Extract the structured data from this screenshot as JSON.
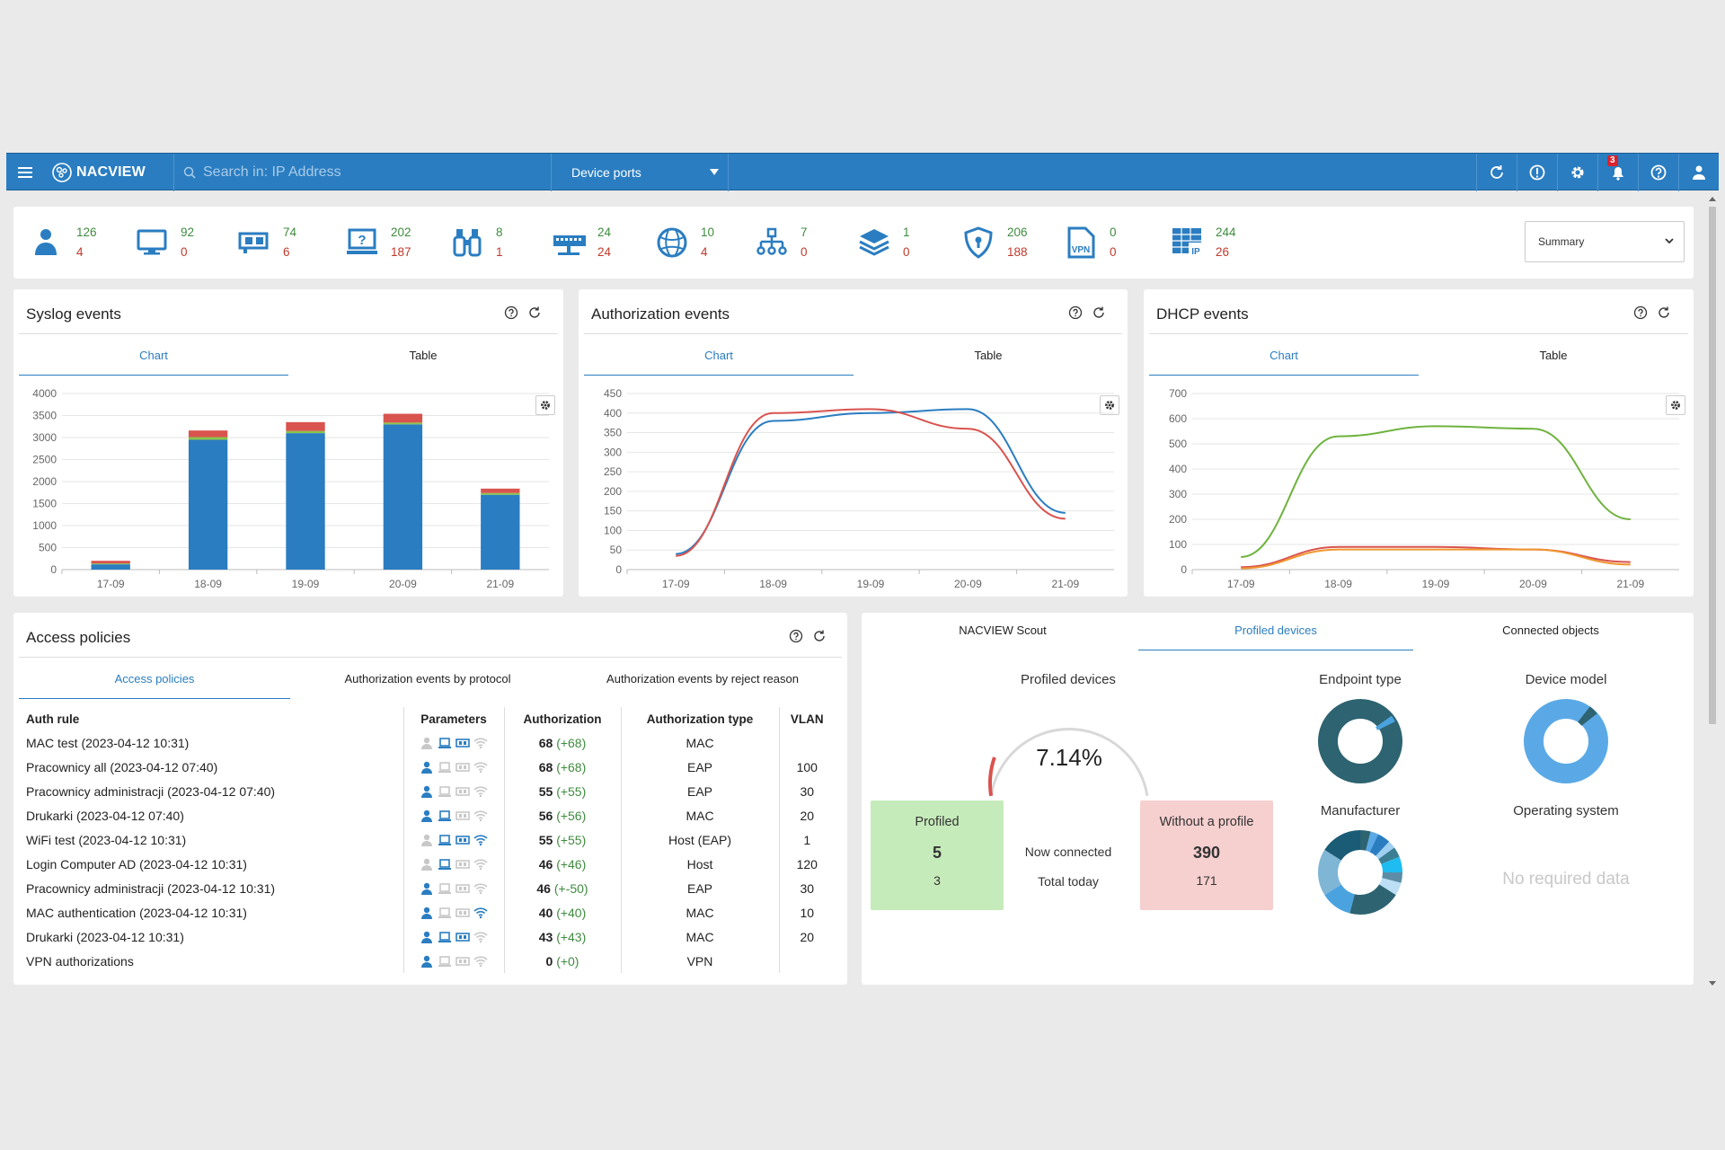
{
  "topbar": {
    "logo_text": "NACVIEW",
    "search_placeholder": "Search in: IP Address",
    "select_value": "Device ports",
    "notification_count": "3",
    "icons": [
      "refresh-icon",
      "info-icon",
      "gear-icon",
      "notification-bell-icon",
      "help-icon",
      "user-icon"
    ]
  },
  "stats": [
    {
      "icon": "users-icon",
      "top": "126",
      "bottom": "4"
    },
    {
      "icon": "monitor-icon",
      "top": "92",
      "bottom": "0"
    },
    {
      "icon": "network-card-icon",
      "top": "74",
      "bottom": "6"
    },
    {
      "icon": "unknown-device-icon",
      "top": "202",
      "bottom": "187"
    },
    {
      "icon": "binoculars-icon",
      "top": "8",
      "bottom": "1"
    },
    {
      "icon": "switch-icon",
      "top": "24",
      "bottom": "24"
    },
    {
      "icon": "globe-network-icon",
      "top": "10",
      "bottom": "4"
    },
    {
      "icon": "hierarchy-icon",
      "top": "7",
      "bottom": "0"
    },
    {
      "icon": "layers-icon",
      "top": "1",
      "bottom": "0"
    },
    {
      "icon": "shield-icon",
      "top": "206",
      "bottom": "188"
    },
    {
      "icon": "vpn-file-icon",
      "top": "0",
      "bottom": "0"
    },
    {
      "icon": "ip-table-icon",
      "top": "244",
      "bottom": "26"
    }
  ],
  "summary_select": "Summary",
  "tab_labels": {
    "chart": "Chart",
    "table": "Table"
  },
  "syslog": {
    "title": "Syslog events",
    "chart_data": {
      "type": "bar",
      "categories": [
        "17-09",
        "18-09",
        "19-09",
        "20-09",
        "21-09"
      ],
      "ylim": [
        0,
        4000
      ],
      "yticks": [
        0,
        500,
        1000,
        1500,
        2000,
        2500,
        3000,
        3500,
        4000
      ],
      "series": [
        {
          "values": [
            120,
            2950,
            3100,
            3300,
            1700
          ],
          "color": "#2a7dc1"
        },
        {
          "values": [
            20,
            60,
            50,
            40,
            40
          ],
          "color": "#8bc34a"
        },
        {
          "values": [
            60,
            150,
            200,
            200,
            100
          ],
          "color": "#d9534f"
        }
      ]
    }
  },
  "auth": {
    "title": "Authorization events",
    "chart_data": {
      "type": "line",
      "categories": [
        "17-09",
        "18-09",
        "19-09",
        "20-09",
        "21-09"
      ],
      "ylim": [
        0,
        450
      ],
      "yticks": [
        0,
        50,
        100,
        150,
        200,
        250,
        300,
        350,
        400,
        450
      ],
      "series": [
        {
          "values": [
            40,
            380,
            400,
            410,
            145
          ],
          "color": "#2a7dc1"
        },
        {
          "values": [
            35,
            400,
            410,
            360,
            130
          ],
          "color": "#d9534f"
        }
      ]
    }
  },
  "dhcp": {
    "title": "DHCP events",
    "chart_data": {
      "type": "line",
      "categories": [
        "17-09",
        "18-09",
        "19-09",
        "20-09",
        "21-09"
      ],
      "ylim": [
        0,
        700
      ],
      "yticks": [
        0,
        100,
        200,
        300,
        400,
        500,
        600,
        700
      ],
      "series": [
        {
          "values": [
            50,
            530,
            570,
            560,
            200
          ],
          "color": "#6fb33f"
        },
        {
          "values": [
            10,
            90,
            90,
            80,
            30
          ],
          "color": "#d9534f"
        },
        {
          "values": [
            5,
            80,
            80,
            80,
            20
          ],
          "color": "#f0962e"
        }
      ]
    }
  },
  "access": {
    "title": "Access policies",
    "tabs": [
      "Access policies",
      "Authorization events by protocol",
      "Authorization events by reject reason"
    ],
    "headers": [
      "Auth rule",
      "Parameters",
      "Authorization",
      "Authorization type",
      "VLAN"
    ],
    "rows": [
      {
        "rule": "MAC test (2023-04-12 10:31)",
        "a": "68",
        "d": "(+68)",
        "type": "MAC",
        "vlan": "",
        "p": [
          0,
          1,
          1,
          0
        ]
      },
      {
        "rule": "Pracownicy all (2023-04-12 07:40)",
        "a": "68",
        "d": "(+68)",
        "type": "EAP",
        "vlan": "100",
        "p": [
          1,
          0,
          0,
          0
        ]
      },
      {
        "rule": "Pracownicy administracji (2023-04-12 07:40)",
        "a": "55",
        "d": "(+55)",
        "type": "EAP",
        "vlan": "30",
        "p": [
          1,
          0,
          0,
          0
        ]
      },
      {
        "rule": "Drukarki (2023-04-12 07:40)",
        "a": "56",
        "d": "(+56)",
        "type": "MAC",
        "vlan": "20",
        "p": [
          1,
          1,
          0,
          0
        ]
      },
      {
        "rule": "WiFi test (2023-04-12 10:31)",
        "a": "55",
        "d": "(+55)",
        "type": "Host (EAP)",
        "vlan": "1",
        "p": [
          0,
          1,
          1,
          1
        ]
      },
      {
        "rule": "Login Computer AD (2023-04-12 10:31)",
        "a": "46",
        "d": "(+46)",
        "type": "Host",
        "vlan": "120",
        "p": [
          0,
          1,
          0,
          0
        ]
      },
      {
        "rule": "Pracownicy administracji (2023-04-12 10:31)",
        "a": "46",
        "d": "(+-50)",
        "type": "EAP",
        "vlan": "30",
        "p": [
          1,
          0,
          0,
          0
        ]
      },
      {
        "rule": "MAC authentication (2023-04-12 10:31)",
        "a": "40",
        "d": "(+40)",
        "type": "MAC",
        "vlan": "10",
        "p": [
          1,
          0,
          0,
          1
        ]
      },
      {
        "rule": "Drukarki (2023-04-12 10:31)",
        "a": "43",
        "d": "(+43)",
        "type": "MAC",
        "vlan": "20",
        "p": [
          1,
          1,
          1,
          0
        ]
      },
      {
        "rule": "VPN authorizations",
        "a": "0",
        "d": "(+0)",
        "type": "VPN",
        "vlan": "",
        "p": [
          1,
          0,
          0,
          0
        ]
      }
    ]
  },
  "profiled": {
    "tabs": [
      "NACVIEW Scout",
      "Profiled devices",
      "Connected objects"
    ],
    "gauge_title": "Profiled devices",
    "gauge_value": "7.14%",
    "gauge_fraction": 0.0714,
    "profiled_label": "Profiled",
    "profiled_now": "5",
    "profiled_today": "3",
    "now_connected": "Now connected",
    "total_today": "Total today",
    "without_label": "Without a profile",
    "without_now": "390",
    "without_today": "171",
    "endpoint_title": "Endpoint type",
    "model_title": "Device model",
    "manufacturer_title": "Manufacturer",
    "os_title": "Operating system",
    "no_data": "No required data"
  }
}
